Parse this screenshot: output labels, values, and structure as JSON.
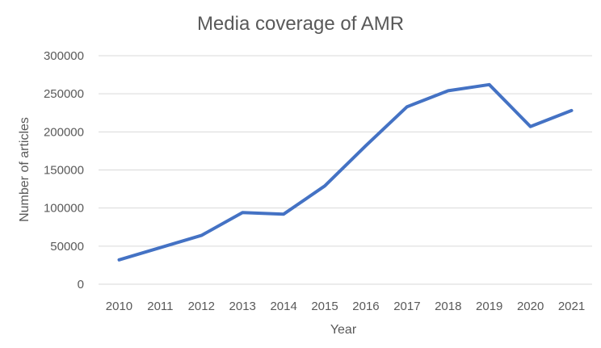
{
  "chart_data": {
    "type": "line",
    "title": "Media coverage of AMR",
    "xlabel": "Year",
    "ylabel": "Number of articles",
    "categories": [
      "2010",
      "2011",
      "2012",
      "2013",
      "2014",
      "2015",
      "2016",
      "2017",
      "2018",
      "2019",
      "2020",
      "2021"
    ],
    "series": [
      {
        "values": [
          32000,
          48000,
          64000,
          94000,
          92000,
          129000,
          182000,
          233000,
          254000,
          262000,
          207000,
          228000
        ],
        "color": "#4472C4"
      }
    ],
    "ylim": [
      0,
      300000
    ],
    "yticks": [
      "0",
      "50000",
      "100000",
      "150000",
      "200000",
      "250000",
      "300000"
    ],
    "grid": true,
    "legend": "none"
  }
}
